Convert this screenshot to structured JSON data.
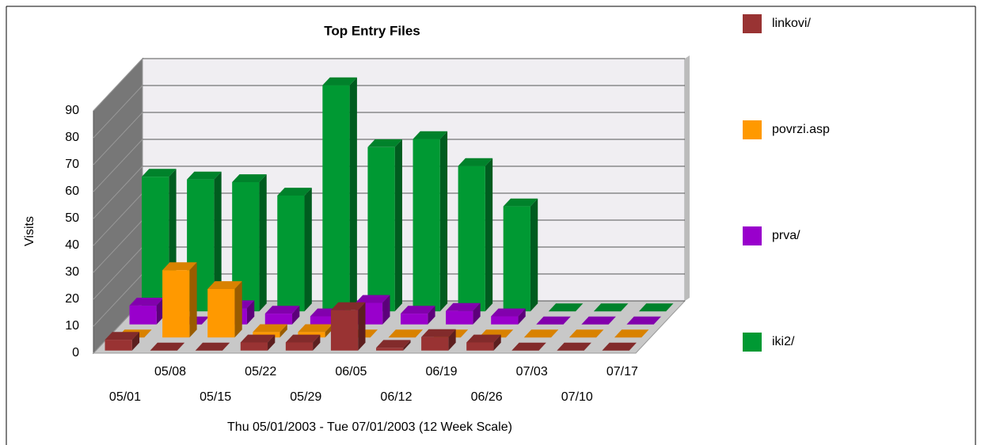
{
  "chart_data": {
    "type": "bar3d",
    "title": "Top Entry Files",
    "subtitle": "Thu 05/01/2003 - Tue 07/01/2003 (12 Week Scale)",
    "y_label": "Visits",
    "categories": [
      "05/01",
      "05/08",
      "05/15",
      "05/22",
      "05/29",
      "06/05",
      "06/12",
      "06/19",
      "06/26",
      "07/03",
      "07/10",
      "07/17"
    ],
    "series": [
      {
        "name": "linkovi/",
        "color": "#993333",
        "values": [
          4,
          0,
          0,
          3,
          3,
          15,
          1,
          5,
          3,
          0,
          0,
          0
        ]
      },
      {
        "name": "povrzi.asp",
        "color": "#ff9900",
        "values": [
          0,
          25,
          18,
          2,
          2,
          0,
          0,
          0,
          0,
          0,
          0,
          0
        ]
      },
      {
        "name": "prva/",
        "color": "#9900cc",
        "values": [
          7,
          0,
          6,
          4,
          3,
          8,
          4,
          5,
          3,
          0,
          0,
          0
        ]
      },
      {
        "name": "iki2/",
        "color": "#009933",
        "values": [
          50,
          49,
          48,
          43,
          84,
          61,
          64,
          54,
          39,
          0,
          0,
          0
        ]
      }
    ],
    "ylim": [
      0,
      90
    ],
    "yticks": [
      0,
      10,
      20,
      30,
      40,
      50,
      60,
      70,
      80,
      90
    ],
    "grid": true
  }
}
